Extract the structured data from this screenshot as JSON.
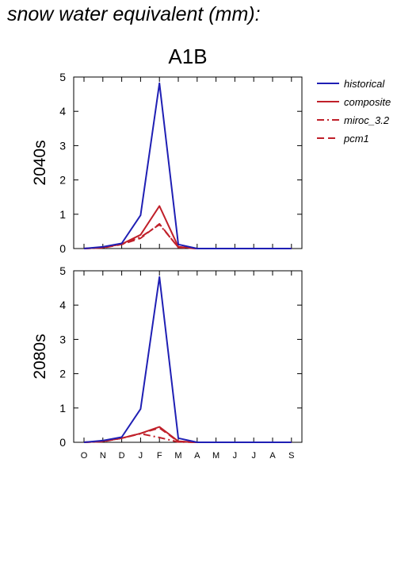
{
  "page_title": "snow water equivalent (mm):",
  "scenario_title": "A1B",
  "colors": {
    "historical": "#1f1fb4",
    "composite": "#c0202a",
    "axis": "#000000"
  },
  "legend": [
    {
      "name": "historical",
      "style": "solid",
      "color": "#1f1fb4"
    },
    {
      "name": "composite",
      "style": "solid",
      "color": "#c0202a"
    },
    {
      "name": "miroc_3.2",
      "style": "dashdot",
      "color": "#c0202a"
    },
    {
      "name": "pcm1",
      "style": "dash",
      "color": "#c0202a"
    }
  ],
  "chart_data": [
    {
      "type": "line",
      "panel_label": "2040s",
      "categories": [
        "O",
        "N",
        "D",
        "J",
        "F",
        "M",
        "A",
        "M",
        "J",
        "J",
        "A",
        "S"
      ],
      "ylim": [
        0,
        5
      ],
      "yticks": [
        0,
        1,
        2,
        3,
        4,
        5
      ],
      "grid": false,
      "series": [
        {
          "name": "historical",
          "values": [
            0.0,
            0.05,
            0.15,
            0.97,
            4.82,
            0.12,
            0.0,
            0.0,
            0.0,
            0.0,
            0.0,
            0.0
          ]
        },
        {
          "name": "composite",
          "values": [
            0.0,
            0.03,
            0.13,
            0.4,
            1.24,
            0.05,
            0.0,
            0.0,
            0.0,
            0.0,
            0.0,
            0.0
          ]
        },
        {
          "name": "miroc_3.2",
          "values": [
            0.0,
            0.03,
            0.13,
            0.33,
            0.7,
            0.04,
            0.0,
            0.0,
            0.0,
            0.0,
            0.0,
            0.0
          ]
        },
        {
          "name": "pcm1",
          "values": [
            0.0,
            0.02,
            0.12,
            0.3,
            0.72,
            0.03,
            0.0,
            0.0,
            0.0,
            0.0,
            0.0,
            0.0
          ]
        }
      ]
    },
    {
      "type": "line",
      "panel_label": "2080s",
      "categories": [
        "O",
        "N",
        "D",
        "J",
        "F",
        "M",
        "A",
        "M",
        "J",
        "J",
        "A",
        "S"
      ],
      "ylim": [
        0,
        5
      ],
      "yticks": [
        0,
        1,
        2,
        3,
        4,
        5
      ],
      "grid": false,
      "series": [
        {
          "name": "historical",
          "values": [
            0.0,
            0.05,
            0.15,
            0.97,
            4.82,
            0.12,
            0.0,
            0.0,
            0.0,
            0.0,
            0.0,
            0.0
          ]
        },
        {
          "name": "composite",
          "values": [
            0.0,
            0.03,
            0.12,
            0.26,
            0.45,
            0.03,
            0.0,
            0.0,
            0.0,
            0.0,
            0.0,
            0.0
          ]
        },
        {
          "name": "miroc_3.2",
          "values": [
            0.0,
            0.03,
            0.12,
            0.25,
            0.14,
            0.01,
            0.0,
            0.0,
            0.0,
            0.0,
            0.0,
            0.0
          ]
        },
        {
          "name": "pcm1",
          "values": [
            0.0,
            0.02,
            0.12,
            0.26,
            0.42,
            0.02,
            0.0,
            0.0,
            0.0,
            0.0,
            0.0,
            0.0
          ]
        }
      ]
    }
  ]
}
